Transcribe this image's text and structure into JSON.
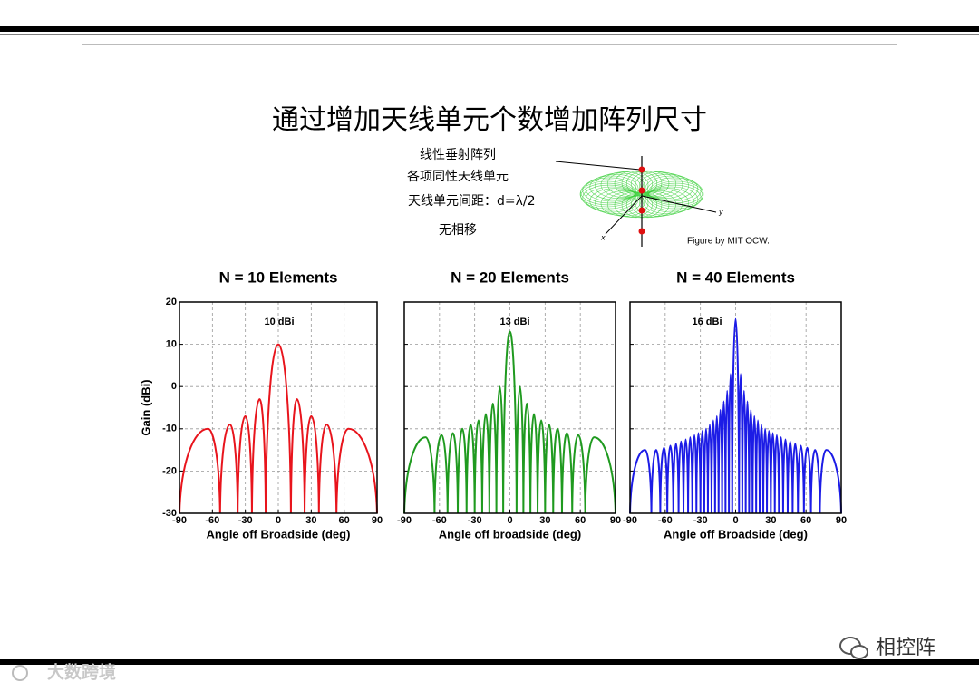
{
  "slide": {
    "title": "通过增加天线单元个数增加阵列尺寸",
    "notes": [
      "线性垂射阵列",
      "各项同性天线单元",
      "天线单元间距：d=λ/2",
      "无相移"
    ],
    "figure_credit": "Figure by MIT OCW.",
    "figure_axes": [
      "x",
      "y"
    ],
    "watermark_left": "大数跨境",
    "watermark_right": "相控阵"
  },
  "chart_data": [
    {
      "type": "line",
      "title": "N = 10 Elements",
      "xlabel": "Angle off Broadside (deg)",
      "ylabel": "Gain (dBi)",
      "annotation": "10 dBi",
      "x": [
        -90,
        -64,
        -53,
        -44,
        -37,
        -30,
        -24,
        -17,
        -11.5,
        0,
        11.5,
        17,
        24,
        30,
        37,
        44,
        53,
        64,
        90
      ],
      "series": [
        {
          "color": "#e8141c",
          "values": [
            -30,
            -10,
            -30,
            -9,
            -30,
            -7,
            -30,
            -3,
            -30,
            10,
            -30,
            -3,
            -30,
            -7,
            -30,
            -9,
            -30,
            -10,
            -30
          ]
        }
      ],
      "xlim": [
        -90,
        90
      ],
      "ylim": [
        -30,
        20
      ],
      "xticks": [
        -90,
        -60,
        -30,
        0,
        30,
        60,
        90
      ],
      "yticks": [
        20,
        10,
        0,
        -10,
        -20,
        -30
      ],
      "grid": true,
      "ytick_labels": true
    },
    {
      "type": "line",
      "title": "N = 20 Elements",
      "xlabel": "Angle off broadside (deg)",
      "annotation": "13 dBi",
      "x": [
        -90,
        -71.8,
        -64.2,
        -58.2,
        -53.1,
        -48.6,
        -44.4,
        -40.5,
        -36.9,
        -33.4,
        -30,
        -26.7,
        -23.6,
        -20.5,
        -17.5,
        -14.5,
        -11.5,
        -8.6,
        -5.7,
        0,
        5.7,
        8.6,
        11.5,
        14.5,
        17.5,
        20.5,
        23.6,
        26.7,
        30,
        33.4,
        36.9,
        40.5,
        44.4,
        48.6,
        53.1,
        58.2,
        64.2,
        71.8,
        90
      ],
      "series": [
        {
          "color": "#1f9a1f",
          "values": [
            -30,
            -12,
            -30,
            -11.5,
            -30,
            -11,
            -30,
            -10,
            -30,
            -9,
            -30,
            -8,
            -30,
            -6.5,
            -30,
            -4,
            -30,
            0,
            -30,
            13,
            -30,
            0,
            -30,
            -4,
            -30,
            -6.5,
            -30,
            -8,
            -30,
            -9,
            -30,
            -10,
            -30,
            -11,
            -30,
            -11.5,
            -30,
            -12,
            -30
          ]
        }
      ],
      "xlim": [
        -90,
        90
      ],
      "ylim": [
        -30,
        20
      ],
      "xticks": [
        -90,
        -60,
        -30,
        0,
        30,
        60,
        90
      ],
      "yticks": [
        20,
        10,
        0,
        -10,
        -20,
        -30
      ],
      "grid": true,
      "ytick_labels": false
    },
    {
      "type": "line",
      "title": "N = 40 Elements",
      "xlabel": "Angle off Broadside (deg)",
      "annotation": "16 dBi",
      "x": [
        -90,
        -77.2,
        -71.8,
        -67.7,
        -64.2,
        -61,
        -58.2,
        -55.6,
        -53.1,
        -50.8,
        -48.6,
        -46.5,
        -44.4,
        -42.5,
        -40.5,
        -38.7,
        -36.9,
        -35.1,
        -33.4,
        -31.7,
        -30,
        -28.4,
        -26.7,
        -25.2,
        -23.6,
        -22,
        -20.5,
        -19,
        -17.5,
        -16,
        -14.5,
        -13,
        -11.5,
        -10.1,
        -8.6,
        -7.2,
        -5.7,
        -4.3,
        -2.9,
        0,
        2.9,
        4.3,
        5.7,
        7.2,
        8.6,
        10.1,
        11.5,
        13,
        14.5,
        16,
        17.5,
        19,
        20.5,
        22,
        23.6,
        25.2,
        26.7,
        28.4,
        30,
        31.7,
        33.4,
        35.1,
        36.9,
        38.7,
        40.5,
        42.5,
        44.4,
        46.5,
        48.6,
        50.8,
        53.1,
        55.6,
        58.2,
        61,
        64.2,
        67.7,
        71.8,
        77.2,
        90
      ],
      "series": [
        {
          "color": "#1c1ce6",
          "values": [
            -30,
            -15,
            -30,
            -15,
            -30,
            -14.5,
            -30,
            -14,
            -30,
            -13.5,
            -30,
            -13,
            -30,
            -12.5,
            -30,
            -12,
            -30,
            -11.5,
            -30,
            -11,
            -30,
            -10.5,
            -30,
            -10,
            -30,
            -9,
            -30,
            -8,
            -30,
            -7,
            -30,
            -5.5,
            -30,
            -3.5,
            -30,
            -1,
            -30,
            3,
            -30,
            16,
            -30,
            3,
            -30,
            -1,
            -30,
            -3.5,
            -30,
            -5.5,
            -30,
            -7,
            -30,
            -8,
            -30,
            -9,
            -30,
            -10,
            -30,
            -10.5,
            -30,
            -11,
            -30,
            -11.5,
            -30,
            -12,
            -30,
            -12.5,
            -30,
            -13,
            -30,
            -13.5,
            -30,
            -14,
            -30,
            -14.5,
            -30,
            -15,
            -30,
            -15,
            -30
          ]
        }
      ],
      "xlim": [
        -90,
        90
      ],
      "ylim": [
        -30,
        20
      ],
      "xticks": [
        -90,
        -60,
        -30,
        0,
        30,
        60,
        90
      ],
      "yticks": [
        20,
        10,
        0,
        -10,
        -20,
        -30
      ],
      "grid": true,
      "ytick_labels": false
    }
  ]
}
